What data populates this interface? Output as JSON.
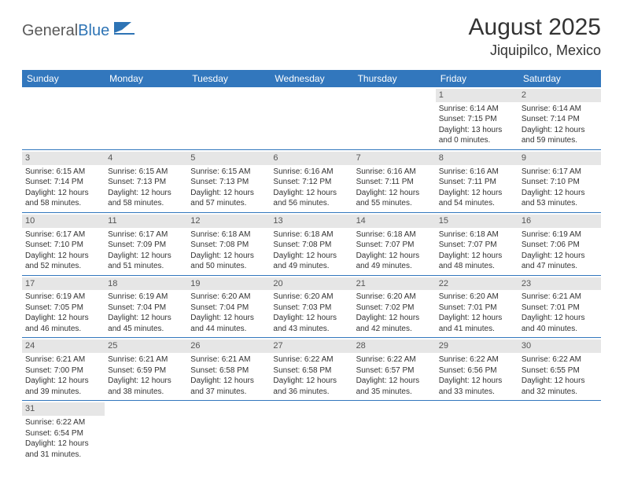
{
  "logo": {
    "text1": "General",
    "text2": "Blue"
  },
  "title": "August 2025",
  "location": "Jiquipilco, Mexico",
  "colors": {
    "header_bg": "#3277bd",
    "header_text": "#ffffff",
    "daynum_bg": "#e6e6e6",
    "row_border": "#3277bd",
    "body_text": "#333333",
    "logo_gray": "#5a5a5a",
    "logo_blue": "#2e74b5"
  },
  "fonts": {
    "title_size_pt": 22,
    "location_size_pt": 14,
    "dayheader_size_pt": 9,
    "daynum_size_pt": 8,
    "detail_size_pt": 7
  },
  "day_names": [
    "Sunday",
    "Monday",
    "Tuesday",
    "Wednesday",
    "Thursday",
    "Friday",
    "Saturday"
  ],
  "weeks": [
    [
      {
        "n": "",
        "empty": true
      },
      {
        "n": "",
        "empty": true
      },
      {
        "n": "",
        "empty": true
      },
      {
        "n": "",
        "empty": true
      },
      {
        "n": "",
        "empty": true
      },
      {
        "n": "1",
        "sunrise": "Sunrise: 6:14 AM",
        "sunset": "Sunset: 7:15 PM",
        "daylight": "Daylight: 13 hours and 0 minutes."
      },
      {
        "n": "2",
        "sunrise": "Sunrise: 6:14 AM",
        "sunset": "Sunset: 7:14 PM",
        "daylight": "Daylight: 12 hours and 59 minutes."
      }
    ],
    [
      {
        "n": "3",
        "sunrise": "Sunrise: 6:15 AM",
        "sunset": "Sunset: 7:14 PM",
        "daylight": "Daylight: 12 hours and 58 minutes."
      },
      {
        "n": "4",
        "sunrise": "Sunrise: 6:15 AM",
        "sunset": "Sunset: 7:13 PM",
        "daylight": "Daylight: 12 hours and 58 minutes."
      },
      {
        "n": "5",
        "sunrise": "Sunrise: 6:15 AM",
        "sunset": "Sunset: 7:13 PM",
        "daylight": "Daylight: 12 hours and 57 minutes."
      },
      {
        "n": "6",
        "sunrise": "Sunrise: 6:16 AM",
        "sunset": "Sunset: 7:12 PM",
        "daylight": "Daylight: 12 hours and 56 minutes."
      },
      {
        "n": "7",
        "sunrise": "Sunrise: 6:16 AM",
        "sunset": "Sunset: 7:11 PM",
        "daylight": "Daylight: 12 hours and 55 minutes."
      },
      {
        "n": "8",
        "sunrise": "Sunrise: 6:16 AM",
        "sunset": "Sunset: 7:11 PM",
        "daylight": "Daylight: 12 hours and 54 minutes."
      },
      {
        "n": "9",
        "sunrise": "Sunrise: 6:17 AM",
        "sunset": "Sunset: 7:10 PM",
        "daylight": "Daylight: 12 hours and 53 minutes."
      }
    ],
    [
      {
        "n": "10",
        "sunrise": "Sunrise: 6:17 AM",
        "sunset": "Sunset: 7:10 PM",
        "daylight": "Daylight: 12 hours and 52 minutes."
      },
      {
        "n": "11",
        "sunrise": "Sunrise: 6:17 AM",
        "sunset": "Sunset: 7:09 PM",
        "daylight": "Daylight: 12 hours and 51 minutes."
      },
      {
        "n": "12",
        "sunrise": "Sunrise: 6:18 AM",
        "sunset": "Sunset: 7:08 PM",
        "daylight": "Daylight: 12 hours and 50 minutes."
      },
      {
        "n": "13",
        "sunrise": "Sunrise: 6:18 AM",
        "sunset": "Sunset: 7:08 PM",
        "daylight": "Daylight: 12 hours and 49 minutes."
      },
      {
        "n": "14",
        "sunrise": "Sunrise: 6:18 AM",
        "sunset": "Sunset: 7:07 PM",
        "daylight": "Daylight: 12 hours and 49 minutes."
      },
      {
        "n": "15",
        "sunrise": "Sunrise: 6:18 AM",
        "sunset": "Sunset: 7:07 PM",
        "daylight": "Daylight: 12 hours and 48 minutes."
      },
      {
        "n": "16",
        "sunrise": "Sunrise: 6:19 AM",
        "sunset": "Sunset: 7:06 PM",
        "daylight": "Daylight: 12 hours and 47 minutes."
      }
    ],
    [
      {
        "n": "17",
        "sunrise": "Sunrise: 6:19 AM",
        "sunset": "Sunset: 7:05 PM",
        "daylight": "Daylight: 12 hours and 46 minutes."
      },
      {
        "n": "18",
        "sunrise": "Sunrise: 6:19 AM",
        "sunset": "Sunset: 7:04 PM",
        "daylight": "Daylight: 12 hours and 45 minutes."
      },
      {
        "n": "19",
        "sunrise": "Sunrise: 6:20 AM",
        "sunset": "Sunset: 7:04 PM",
        "daylight": "Daylight: 12 hours and 44 minutes."
      },
      {
        "n": "20",
        "sunrise": "Sunrise: 6:20 AM",
        "sunset": "Sunset: 7:03 PM",
        "daylight": "Daylight: 12 hours and 43 minutes."
      },
      {
        "n": "21",
        "sunrise": "Sunrise: 6:20 AM",
        "sunset": "Sunset: 7:02 PM",
        "daylight": "Daylight: 12 hours and 42 minutes."
      },
      {
        "n": "22",
        "sunrise": "Sunrise: 6:20 AM",
        "sunset": "Sunset: 7:01 PM",
        "daylight": "Daylight: 12 hours and 41 minutes."
      },
      {
        "n": "23",
        "sunrise": "Sunrise: 6:21 AM",
        "sunset": "Sunset: 7:01 PM",
        "daylight": "Daylight: 12 hours and 40 minutes."
      }
    ],
    [
      {
        "n": "24",
        "sunrise": "Sunrise: 6:21 AM",
        "sunset": "Sunset: 7:00 PM",
        "daylight": "Daylight: 12 hours and 39 minutes."
      },
      {
        "n": "25",
        "sunrise": "Sunrise: 6:21 AM",
        "sunset": "Sunset: 6:59 PM",
        "daylight": "Daylight: 12 hours and 38 minutes."
      },
      {
        "n": "26",
        "sunrise": "Sunrise: 6:21 AM",
        "sunset": "Sunset: 6:58 PM",
        "daylight": "Daylight: 12 hours and 37 minutes."
      },
      {
        "n": "27",
        "sunrise": "Sunrise: 6:22 AM",
        "sunset": "Sunset: 6:58 PM",
        "daylight": "Daylight: 12 hours and 36 minutes."
      },
      {
        "n": "28",
        "sunrise": "Sunrise: 6:22 AM",
        "sunset": "Sunset: 6:57 PM",
        "daylight": "Daylight: 12 hours and 35 minutes."
      },
      {
        "n": "29",
        "sunrise": "Sunrise: 6:22 AM",
        "sunset": "Sunset: 6:56 PM",
        "daylight": "Daylight: 12 hours and 33 minutes."
      },
      {
        "n": "30",
        "sunrise": "Sunrise: 6:22 AM",
        "sunset": "Sunset: 6:55 PM",
        "daylight": "Daylight: 12 hours and 32 minutes."
      }
    ],
    [
      {
        "n": "31",
        "sunrise": "Sunrise: 6:22 AM",
        "sunset": "Sunset: 6:54 PM",
        "daylight": "Daylight: 12 hours and 31 minutes."
      },
      {
        "n": "",
        "empty": true
      },
      {
        "n": "",
        "empty": true
      },
      {
        "n": "",
        "empty": true
      },
      {
        "n": "",
        "empty": true
      },
      {
        "n": "",
        "empty": true
      },
      {
        "n": "",
        "empty": true
      }
    ]
  ]
}
